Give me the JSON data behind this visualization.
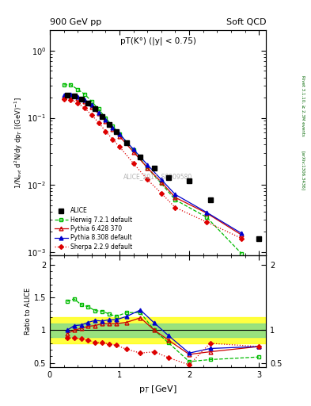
{
  "title_top": "900 GeV pp",
  "title_right": "Soft QCD",
  "plot_label": "pT(K°) (|y| < 0.75)",
  "watermark": "ALICE_2011_S8909580",
  "rivet_label": "Rivet 3.1.10, ≥ 2.3M events",
  "arxiv_label": "[arXiv:1306.3436]",
  "ylabel_main": "1/N$_{evt}$ d$^{2}$N/dy dp$_{T}$ [(GeV)$^{-1}$]",
  "ylabel_ratio": "Ratio to ALICE",
  "xlabel": "p$_{T}$ [GeV]",
  "ylim_main": [
    0.0009,
    2.0
  ],
  "ylim_ratio": [
    0.43,
    2.15
  ],
  "xlim": [
    0.0,
    3.1
  ],
  "alice_x": [
    0.25,
    0.35,
    0.45,
    0.55,
    0.65,
    0.75,
    0.85,
    0.95,
    1.1,
    1.3,
    1.5,
    1.7,
    2.0,
    2.3,
    3.0
  ],
  "alice_y": [
    0.215,
    0.21,
    0.19,
    0.165,
    0.135,
    0.105,
    0.08,
    0.062,
    0.043,
    0.026,
    0.018,
    0.013,
    0.0115,
    0.006,
    0.0016
  ],
  "herwig_x": [
    0.2,
    0.3,
    0.4,
    0.5,
    0.6,
    0.7,
    0.8,
    0.9,
    1.0,
    1.2,
    1.4,
    1.6,
    1.8,
    2.25,
    2.75
  ],
  "herwig_y": [
    0.31,
    0.31,
    0.265,
    0.225,
    0.175,
    0.135,
    0.1,
    0.075,
    0.058,
    0.033,
    0.018,
    0.0105,
    0.006,
    0.0033,
    0.00095
  ],
  "pythia6_x": [
    0.2,
    0.3,
    0.4,
    0.5,
    0.6,
    0.7,
    0.8,
    0.9,
    1.0,
    1.2,
    1.4,
    1.6,
    1.8,
    2.25,
    2.75
  ],
  "pythia6_y": [
    0.205,
    0.21,
    0.195,
    0.175,
    0.145,
    0.115,
    0.088,
    0.068,
    0.053,
    0.031,
    0.018,
    0.011,
    0.0065,
    0.0038,
    0.0018
  ],
  "pythia8_x": [
    0.2,
    0.3,
    0.4,
    0.5,
    0.6,
    0.7,
    0.8,
    0.9,
    1.0,
    1.2,
    1.4,
    1.6,
    1.8,
    2.25,
    2.75
  ],
  "pythia8_y": [
    0.215,
    0.225,
    0.205,
    0.185,
    0.155,
    0.12,
    0.093,
    0.072,
    0.057,
    0.034,
    0.02,
    0.012,
    0.0072,
    0.0039,
    0.0019
  ],
  "sherpa_x": [
    0.2,
    0.3,
    0.4,
    0.5,
    0.6,
    0.7,
    0.8,
    0.9,
    1.0,
    1.2,
    1.4,
    1.6,
    1.8,
    2.25,
    2.75
  ],
  "sherpa_y": [
    0.19,
    0.185,
    0.165,
    0.14,
    0.11,
    0.085,
    0.063,
    0.048,
    0.037,
    0.021,
    0.012,
    0.0075,
    0.0046,
    0.0028,
    0.0016
  ],
  "herwig_ratio_x": [
    0.25,
    0.35,
    0.45,
    0.55,
    0.65,
    0.75,
    0.85,
    0.95,
    1.1,
    1.3,
    1.5,
    1.7,
    2.0,
    2.3,
    3.0
  ],
  "herwig_ratio": [
    1.44,
    1.48,
    1.39,
    1.36,
    1.3,
    1.29,
    1.25,
    1.21,
    1.27,
    1.27,
    1.0,
    0.81,
    0.52,
    0.55,
    0.59
  ],
  "pythia6_ratio_x": [
    0.25,
    0.35,
    0.45,
    0.55,
    0.65,
    0.75,
    0.85,
    0.95,
    1.1,
    1.3,
    1.5,
    1.7,
    2.0,
    2.3,
    3.0
  ],
  "pythia6_ratio": [
    0.95,
    1.0,
    1.03,
    1.06,
    1.07,
    1.1,
    1.1,
    1.1,
    1.12,
    1.19,
    1.0,
    0.85,
    0.63,
    0.67,
    0.75
  ],
  "pythia8_ratio_x": [
    0.25,
    0.35,
    0.45,
    0.55,
    0.65,
    0.75,
    0.85,
    0.95,
    1.1,
    1.3,
    1.5,
    1.7,
    2.0,
    2.3,
    3.0
  ],
  "pythia8_ratio": [
    1.0,
    1.07,
    1.08,
    1.12,
    1.15,
    1.14,
    1.16,
    1.16,
    1.21,
    1.31,
    1.11,
    0.92,
    0.65,
    0.72,
    0.75
  ],
  "sherpa_ratio_x": [
    0.25,
    0.35,
    0.45,
    0.55,
    0.65,
    0.75,
    0.85,
    0.95,
    1.1,
    1.3,
    1.5,
    1.7,
    2.0,
    2.3,
    3.0
  ],
  "sherpa_ratio": [
    0.88,
    0.88,
    0.87,
    0.85,
    0.81,
    0.81,
    0.79,
    0.77,
    0.71,
    0.65,
    0.67,
    0.58,
    0.47,
    0.8,
    0.75
  ],
  "band_yellow_xmin": 0.0,
  "band_yellow_xmax": 3.1,
  "band_yellow_ylow": 0.8,
  "band_yellow_yhigh": 1.2,
  "band_green_xmin": 0.0,
  "band_green_xmax": 3.1,
  "band_green_ylow": 0.9,
  "band_green_yhigh": 1.1,
  "alice_color": "black",
  "herwig_color": "#00bb00",
  "pythia6_color": "#cc0000",
  "pythia8_color": "#0000cc",
  "sherpa_color": "#dd0000",
  "background_color": "white"
}
